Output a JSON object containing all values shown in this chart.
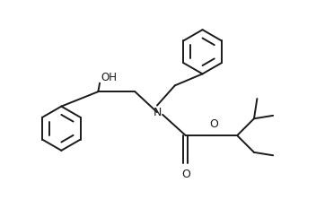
{
  "bg_color": "#ffffff",
  "line_color": "#1a1a1a",
  "line_width": 1.4,
  "font_size": 8.5,
  "figsize": [
    3.52,
    2.42
  ],
  "dpi": 100,
  "xlim": [
    0,
    10
  ],
  "ylim": [
    0,
    7
  ]
}
